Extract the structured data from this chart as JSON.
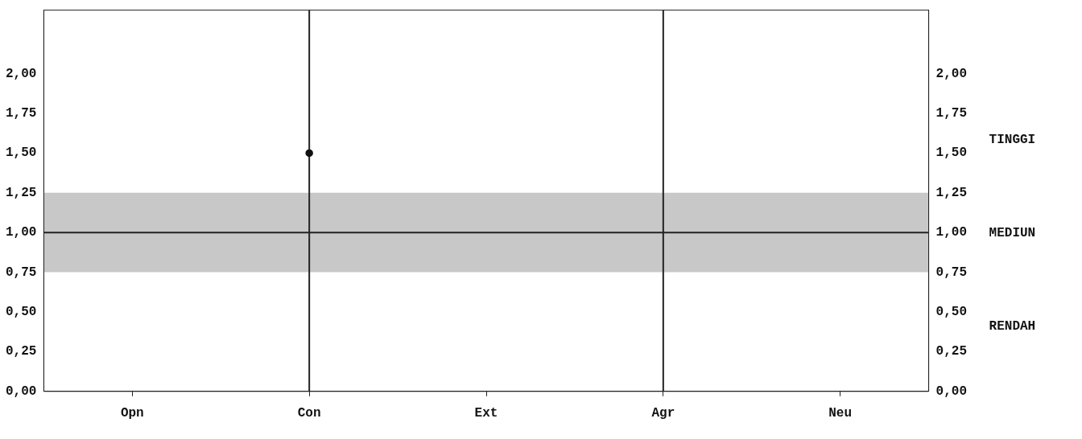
{
  "chart_data": {
    "type": "line",
    "categories": [
      "Opn",
      "Con",
      "Ext",
      "Agr",
      "Neu"
    ],
    "series": [
      {
        "color": "#111111",
        "values": [
          null,
          1.5,
          null,
          null,
          null
        ]
      }
    ],
    "marker": "circle",
    "ylim": [
      0,
      2.4
    ],
    "yticks": [
      {
        "value": 0,
        "label": "0,00"
      },
      {
        "value": 0.25,
        "label": "0,25"
      },
      {
        "value": 0.5,
        "label": "0,50"
      },
      {
        "value": 0.75,
        "label": "0,75"
      },
      {
        "value": 1,
        "label": "1,00"
      },
      {
        "value": 1.25,
        "label": "1,25"
      },
      {
        "value": 1.5,
        "label": "1,50"
      },
      {
        "value": 1.75,
        "label": "1,75"
      },
      {
        "value": 2,
        "label": "2,00"
      }
    ],
    "y2lim": [
      0,
      2.4
    ],
    "y2ticks": [
      {
        "value": 0,
        "label": "0,00"
      },
      {
        "value": 0.25,
        "label": "0,25"
      },
      {
        "value": 0.5,
        "label": "0,50"
      },
      {
        "value": 0.75,
        "label": "0,75"
      },
      {
        "value": 1,
        "label": "1,00"
      },
      {
        "value": 1.25,
        "label": "1,25"
      },
      {
        "value": 1.5,
        "label": "1,50"
      },
      {
        "value": 1.75,
        "label": "1,75"
      },
      {
        "value": 2,
        "label": "2,00"
      }
    ],
    "bands": [
      {
        "axis": "y",
        "from": 0.75,
        "to": 1.25,
        "color": "#c8c8c8"
      }
    ],
    "ref_lines": [
      {
        "axis": "y",
        "value": 1,
        "color": "#222222"
      },
      {
        "axis": "x",
        "value": "Con",
        "color": "#222222"
      },
      {
        "axis": "x",
        "value": "Agr",
        "color": "#222222"
      }
    ],
    "annotations": [
      "TINGGI",
      "MEDIUN",
      "RENDAH"
    ],
    "grid": false,
    "legend": false
  }
}
